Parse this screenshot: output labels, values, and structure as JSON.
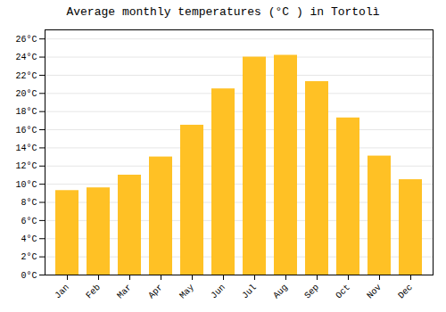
{
  "chart_data": {
    "type": "bar",
    "title": "Average monthly temperatures (°C ) in Tortolì",
    "categories": [
      "Jan",
      "Feb",
      "Mar",
      "Apr",
      "May",
      "Jun",
      "Jul",
      "Aug",
      "Sep",
      "Oct",
      "Nov",
      "Dec"
    ],
    "values": [
      9.3,
      9.6,
      11.0,
      13.0,
      16.5,
      20.5,
      24.0,
      24.2,
      21.3,
      17.3,
      13.1,
      10.5
    ],
    "color": "#FFC125",
    "ylim": [
      0,
      27
    ],
    "yticks": [
      {
        "value": 0,
        "label": "0°C"
      },
      {
        "value": 2,
        "label": "2°C"
      },
      {
        "value": 4,
        "label": "4°C"
      },
      {
        "value": 6,
        "label": "6°C"
      },
      {
        "value": 8,
        "label": "8°C"
      },
      {
        "value": 10,
        "label": "10°C"
      },
      {
        "value": 12,
        "label": "12°C"
      },
      {
        "value": 14,
        "label": "14°C"
      },
      {
        "value": 16,
        "label": "16°C"
      },
      {
        "value": 18,
        "label": "18°C"
      },
      {
        "value": 20,
        "label": "20°C"
      },
      {
        "value": 22,
        "label": "22°C"
      },
      {
        "value": 24,
        "label": "24°C"
      },
      {
        "value": 26,
        "label": "26°C"
      }
    ],
    "grid": true
  }
}
